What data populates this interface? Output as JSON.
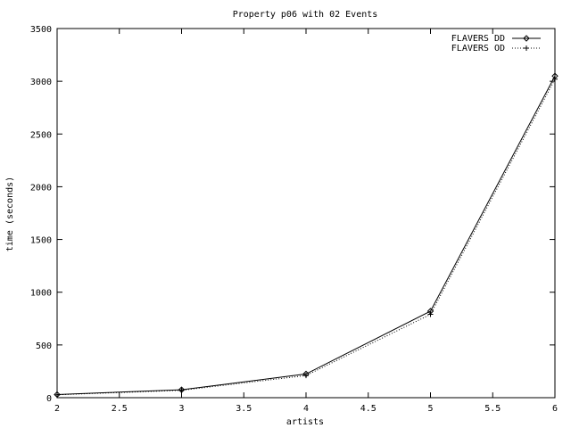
{
  "chart_data": {
    "type": "line",
    "title": "Property p06 with 02 Events",
    "xlabel": "artists",
    "ylabel": "time (seconds)",
    "xlim": [
      2,
      6
    ],
    "ylim": [
      0,
      3500
    ],
    "xticks": [
      2,
      2.5,
      3,
      3.5,
      4,
      4.5,
      5,
      5.5,
      6
    ],
    "xtick_labels": [
      "2",
      "2.5",
      "3",
      "3.5",
      "4",
      "4.5",
      "5",
      "5.5",
      "6"
    ],
    "yticks": [
      0,
      500,
      1000,
      1500,
      2000,
      2500,
      3000,
      3500
    ],
    "ytick_labels": [
      "0",
      "500",
      "1000",
      "1500",
      "2000",
      "2500",
      "3000",
      "3500"
    ],
    "grid": false,
    "legend_position": "top-right",
    "series": [
      {
        "name": "FLAVERS DD",
        "style": "solid",
        "marker": "diamond",
        "color": "#000000",
        "x": [
          2,
          3,
          4,
          5,
          6
        ],
        "y": [
          30,
          75,
          225,
          820,
          3050
        ]
      },
      {
        "name": "FLAVERS OD",
        "style": "dotted",
        "marker": "plus",
        "color": "#000000",
        "x": [
          2,
          3,
          4,
          5,
          6
        ],
        "y": [
          28,
          70,
          210,
          790,
          3020
        ]
      }
    ]
  }
}
